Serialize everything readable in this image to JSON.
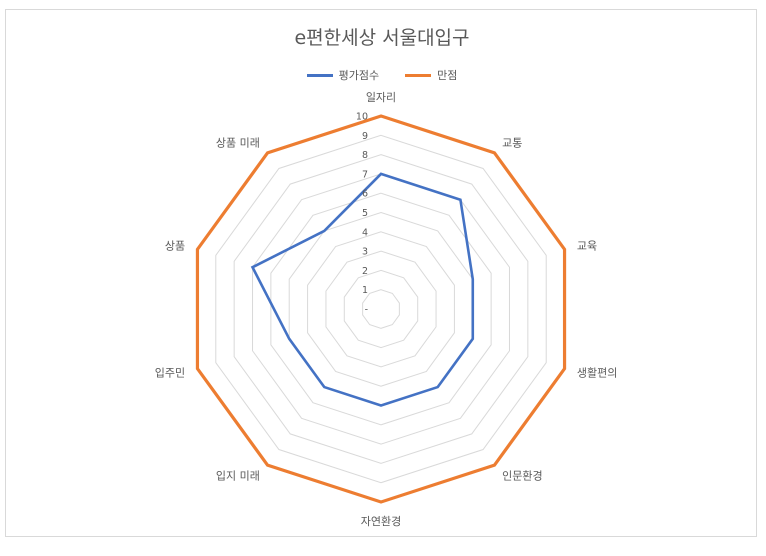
{
  "chart_data": {
    "type": "radar",
    "title": "e편한세상 서울대입구",
    "categories": [
      "일자리",
      "교통",
      "교육",
      "생활편의",
      "인문환경",
      "자연환경",
      "입지 미래",
      "입주민",
      "상품",
      "상품 미래"
    ],
    "ticks": [
      "-",
      "1",
      "2",
      "3",
      "4",
      "5",
      "6",
      "7",
      "8",
      "9",
      "10"
    ],
    "rlim": [
      0,
      10
    ],
    "grid": true,
    "legend_position": "top",
    "series": [
      {
        "name": "평가점수",
        "color": "#4472c4",
        "values": [
          7,
          7,
          5,
          5,
          5,
          5,
          5,
          5,
          7,
          5
        ]
      },
      {
        "name": "만점",
        "color": "#ed7d31",
        "values": [
          10,
          10,
          10,
          10,
          10,
          10,
          10,
          10,
          10,
          10
        ]
      }
    ]
  }
}
